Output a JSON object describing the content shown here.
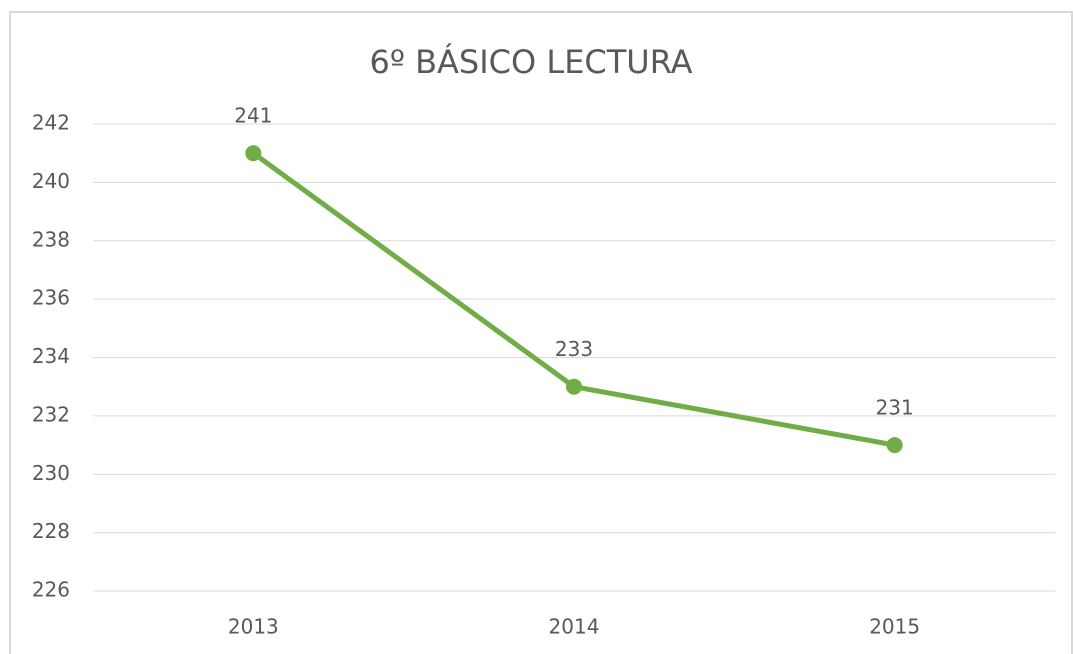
{
  "chart_data": {
    "type": "line",
    "title": "6º BÁSICO LECTURA",
    "categories": [
      "2013",
      "2014",
      "2015"
    ],
    "series": [
      {
        "name": "LECTURA",
        "color": "#70ad47",
        "values": [
          241,
          233,
          231
        ]
      }
    ],
    "ylim": [
      226,
      242
    ],
    "yticks": [
      226,
      228,
      230,
      232,
      234,
      236,
      238,
      240,
      242
    ],
    "grid": true
  }
}
